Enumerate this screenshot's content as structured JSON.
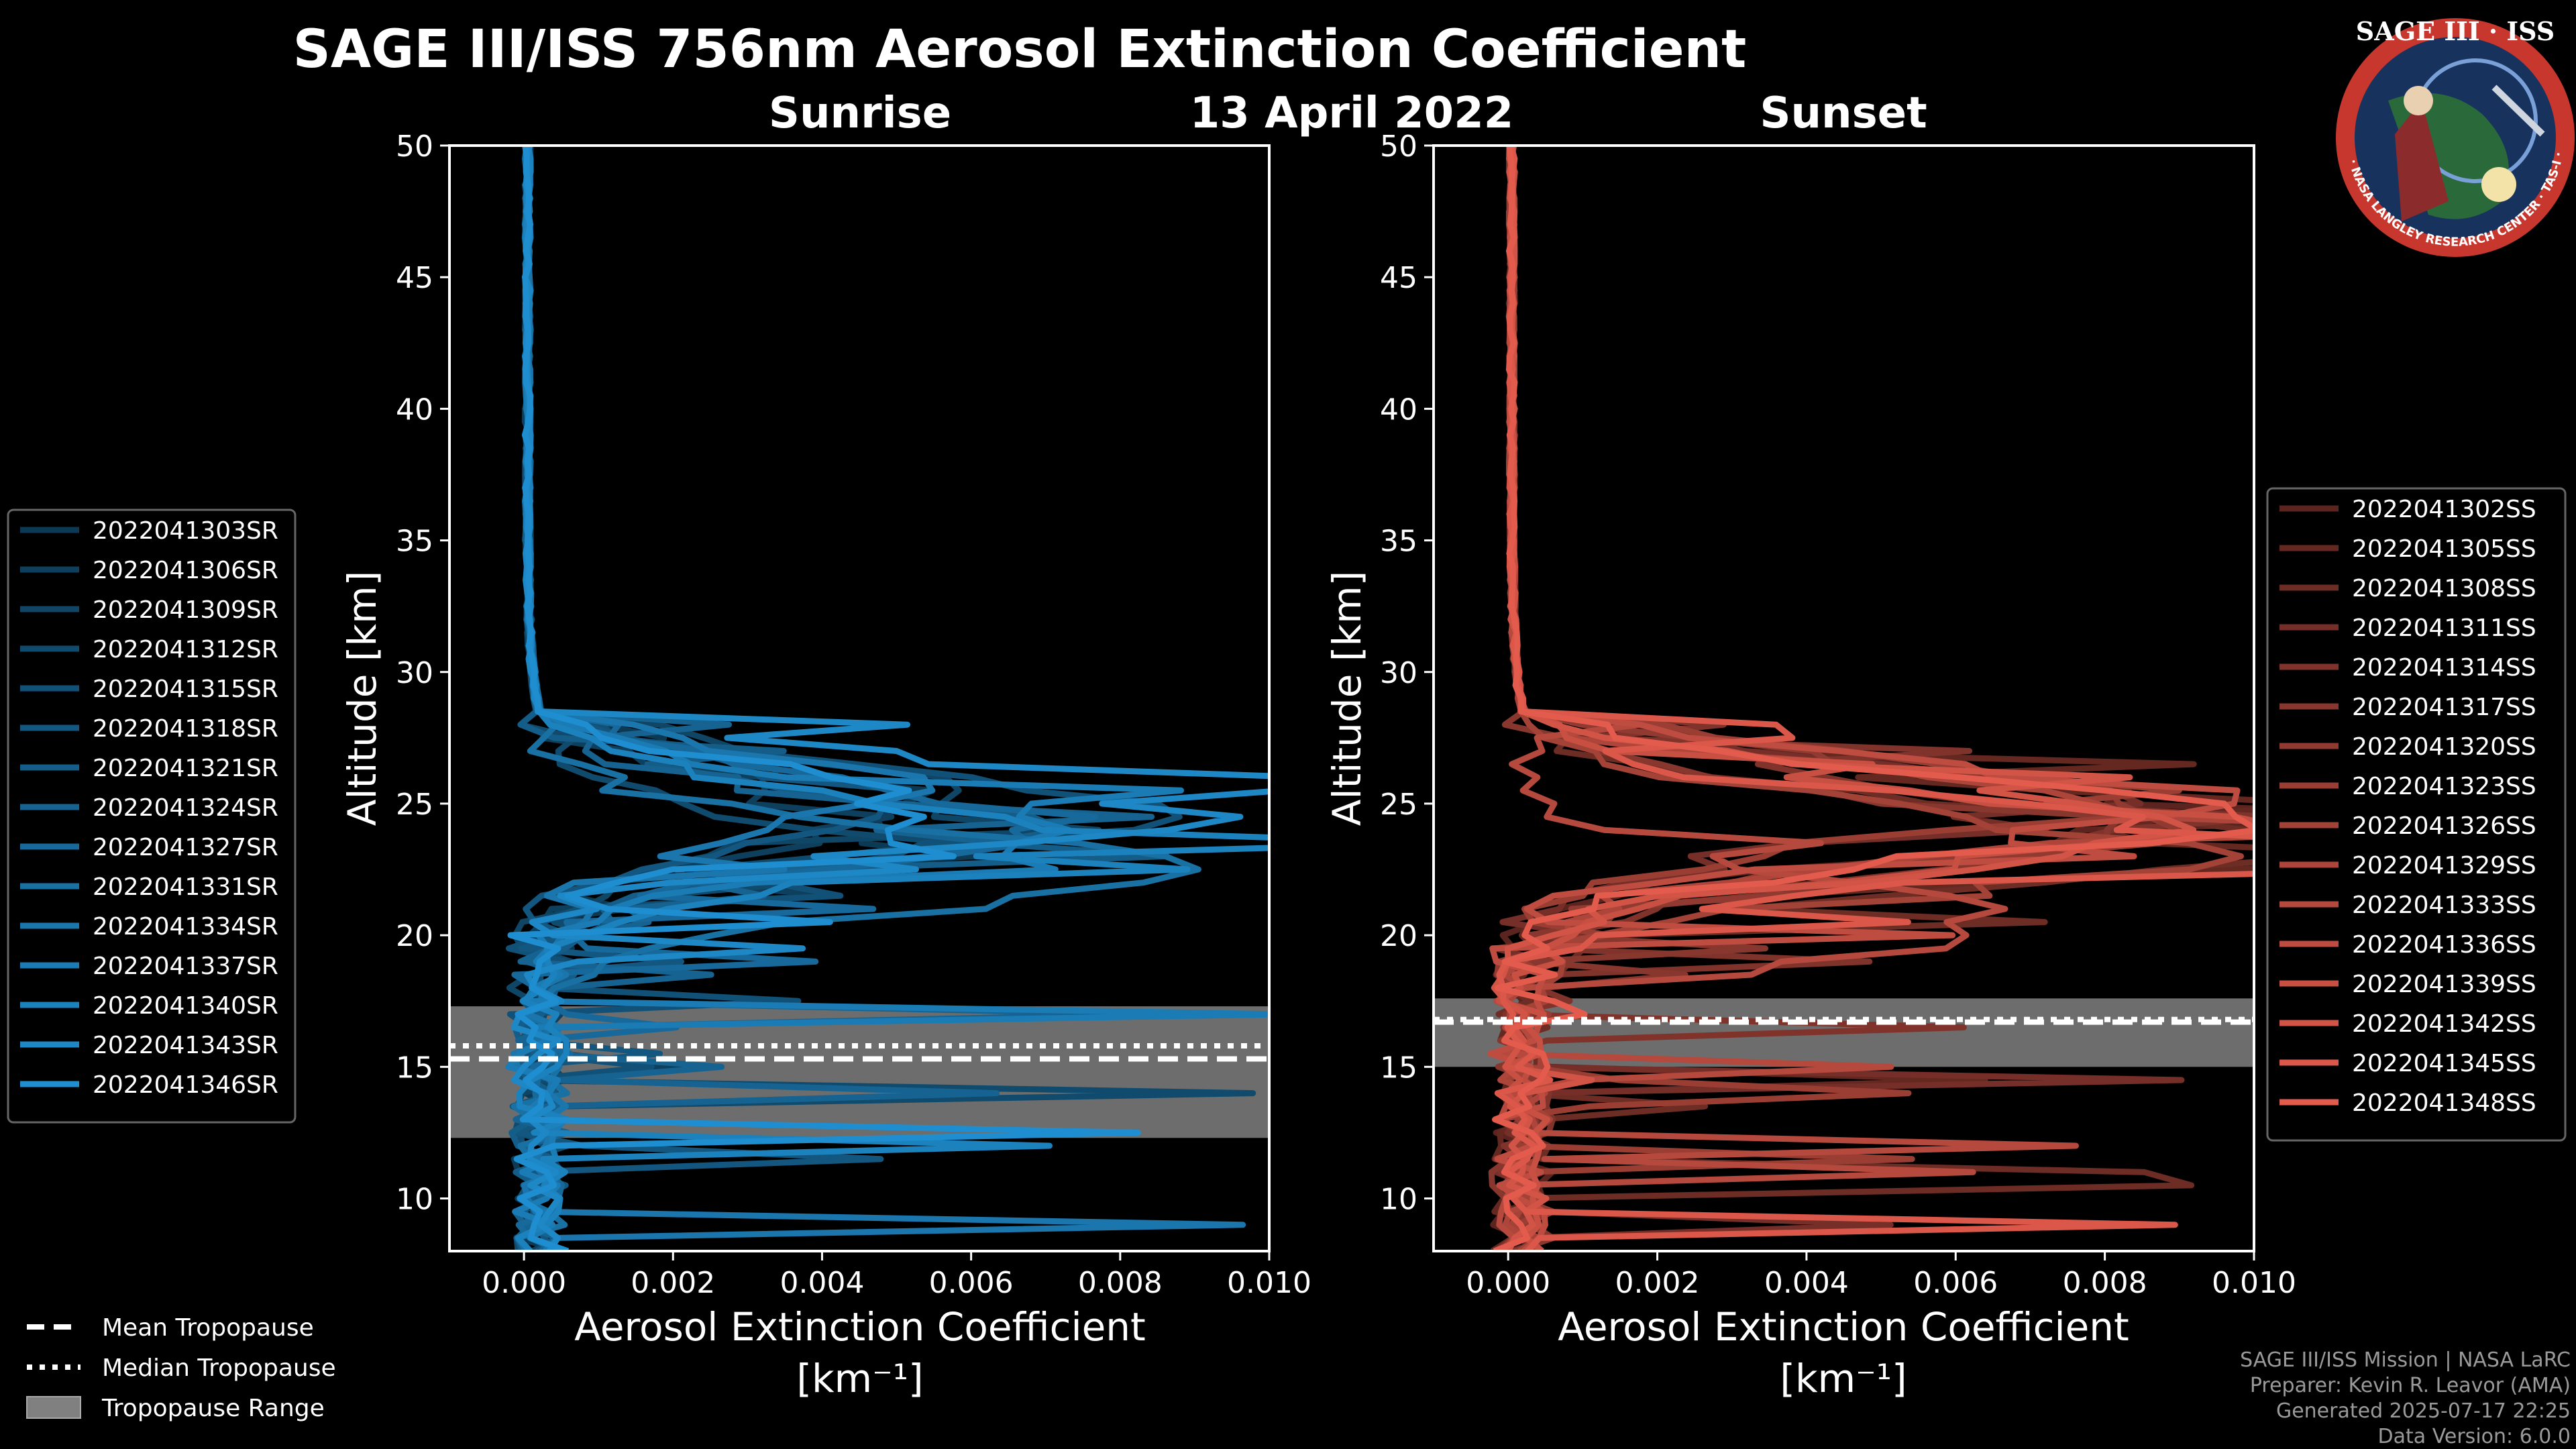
{
  "header": {
    "title": "SAGE III/ISS 756nm Aerosol Extinction Coefficient",
    "date": "13 April 2022"
  },
  "logo": {
    "text_top": "SAGE III · ISS",
    "text_ring": "BALL · NASA LANGLEY RESEARCH CENTER · TAS-I · ESA"
  },
  "legend_bottom": {
    "mean": "Mean Tropopause",
    "median": "Median Tropopause",
    "range": "Tropopause Range"
  },
  "credits": {
    "line1": "SAGE III/ISS Mission | NASA LaRC",
    "line2": "Preparer: Kevin R. Leavor (AMA)",
    "line3": "Generated 2025-07-17 22:25",
    "line4": "Data Version: 6.0.0"
  },
  "colors": {
    "sunrise": "#1f8ed0",
    "sunset": "#e35b4c",
    "band": "#808080"
  },
  "chart_data": [
    {
      "type": "line",
      "title": "Sunrise",
      "xlabel": "Aerosol Extinction Coefficient",
      "xunit": "[km⁻¹]",
      "ylabel": "Altitude [km]",
      "xlim": [
        -0.001,
        0.01
      ],
      "ylim": [
        8,
        50
      ],
      "xticks": [
        "0.000",
        "0.002",
        "0.004",
        "0.006",
        "0.008",
        "0.010"
      ],
      "yticks": [
        "10",
        "15",
        "20",
        "25",
        "30",
        "35",
        "40",
        "45",
        "50"
      ],
      "tropopause": {
        "mean": 15.3,
        "median": 15.8,
        "range": [
          12.3,
          17.3
        ]
      },
      "series": [
        {
          "name": "2022041303SR",
          "peak": 0.0055,
          "peak_alt": 24.8
        },
        {
          "name": "2022041306SR",
          "peak": 0.0045,
          "peak_alt": 24.2
        },
        {
          "name": "2022041309SR",
          "peak": 0.0062,
          "peak_alt": 25.2
        },
        {
          "name": "2022041312SR",
          "peak": 0.0038,
          "peak_alt": 23.5
        },
        {
          "name": "2022041315SR",
          "peak": 0.0081,
          "peak_alt": 24.6
        },
        {
          "name": "2022041318SR",
          "peak": 0.0049,
          "peak_alt": 25.0
        },
        {
          "name": "2022041321SR",
          "peak": 0.0066,
          "peak_alt": 24.0
        },
        {
          "name": "2022041324SR",
          "peak": 0.0058,
          "peak_alt": 23.8
        },
        {
          "name": "2022041327SR",
          "peak": 0.0074,
          "peak_alt": 24.4
        },
        {
          "name": "2022041331SR",
          "peak": 0.0086,
          "peak_alt": 22.5
        },
        {
          "name": "2022041334SR",
          "peak": 0.0052,
          "peak_alt": 25.4
        },
        {
          "name": "2022041337SR",
          "peak": 0.0069,
          "peak_alt": 24.1
        },
        {
          "name": "2022041340SR",
          "peak": 0.0078,
          "peak_alt": 23.6
        },
        {
          "name": "2022041343SR",
          "peak": 0.01,
          "peak_alt": 25.0
        },
        {
          "name": "2022041346SR",
          "peak": 0.0061,
          "peak_alt": 24.7
        }
      ]
    },
    {
      "type": "line",
      "title": "Sunset",
      "xlabel": "Aerosol Extinction Coefficient",
      "xunit": "[km⁻¹]",
      "ylabel": "Altitude [km]",
      "xlim": [
        -0.001,
        0.01
      ],
      "ylim": [
        8,
        50
      ],
      "xticks": [
        "0.000",
        "0.002",
        "0.004",
        "0.006",
        "0.008",
        "0.010"
      ],
      "yticks": [
        "10",
        "15",
        "20",
        "25",
        "30",
        "35",
        "40",
        "45",
        "50"
      ],
      "tropopause": {
        "mean": 16.7,
        "median": 16.8,
        "range": [
          15.0,
          17.6
        ]
      },
      "series": [
        {
          "name": "2022041302SS",
          "peak": 0.01,
          "peak_alt": 24.8
        },
        {
          "name": "2022041305SS",
          "peak": 0.0092,
          "peak_alt": 24.3
        },
        {
          "name": "2022041308SS",
          "peak": 0.01,
          "peak_alt": 23.4
        },
        {
          "name": "2022041311SS",
          "peak": 0.0085,
          "peak_alt": 25.1
        },
        {
          "name": "2022041314SS",
          "peak": 0.0096,
          "peak_alt": 24.0
        },
        {
          "name": "2022041317SS",
          "peak": 0.0079,
          "peak_alt": 23.8
        },
        {
          "name": "2022041320SS",
          "peak": 0.01,
          "peak_alt": 24.6
        },
        {
          "name": "2022041323SS",
          "peak": 0.0088,
          "peak_alt": 25.3
        },
        {
          "name": "2022041326SS",
          "peak": 0.01,
          "peak_alt": 23.2
        },
        {
          "name": "2022041329SS",
          "peak": 0.0094,
          "peak_alt": 24.4
        },
        {
          "name": "2022041333SS",
          "peak": 0.0071,
          "peak_alt": 20.6
        },
        {
          "name": "2022041336SS",
          "peak": 0.01,
          "peak_alt": 24.9
        },
        {
          "name": "2022041339SS",
          "peak": 0.0083,
          "peak_alt": 23.9
        },
        {
          "name": "2022041342SS",
          "peak": 0.01,
          "peak_alt": 24.2
        },
        {
          "name": "2022041345SS",
          "peak": 0.009,
          "peak_alt": 23.6
        },
        {
          "name": "2022041348SS",
          "peak": 0.01,
          "peak_alt": 24.5
        }
      ]
    }
  ]
}
